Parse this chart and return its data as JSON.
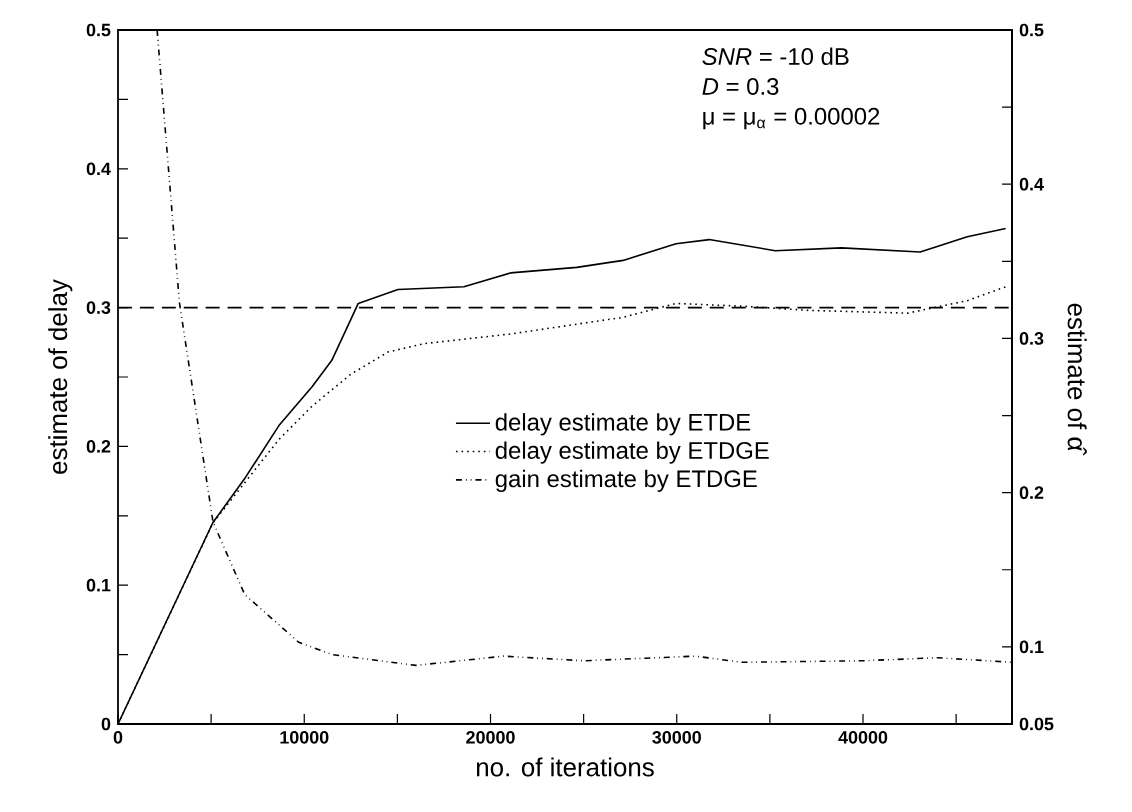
{
  "chart_data": {
    "type": "line",
    "xlabel": "no. of iterations",
    "ylabel": "estimate of delay",
    "y2label": "estimate of α̂",
    "xlim": [
      0,
      48000
    ],
    "ylim": [
      0,
      0.5
    ],
    "y2lim": [
      0.05,
      0.5
    ],
    "xticks": [
      0,
      {
        "value": 5000,
        "label": null
      },
      10000,
      {
        "value": 15000,
        "label": null
      },
      20000,
      {
        "value": 25000,
        "label": null
      },
      30000,
      {
        "value": 35000,
        "label": null
      },
      40000,
      {
        "value": 45000,
        "label": null
      }
    ],
    "yticks": [
      0,
      {
        "value": 0.05,
        "label": null
      },
      0.1,
      {
        "value": 0.15,
        "label": null
      },
      0.2,
      {
        "value": 0.25,
        "label": null
      },
      0.3,
      {
        "value": 0.35,
        "label": null
      },
      0.4,
      {
        "value": 0.45,
        "label": null
      },
      0.5
    ],
    "y2ticks": [
      0.05,
      0.1,
      {
        "value": 0.15,
        "label": null
      },
      0.2,
      {
        "value": 0.25,
        "label": null
      },
      0.3,
      {
        "value": 0.35,
        "label": null
      },
      0.4,
      {
        "value": 0.45,
        "label": null
      },
      0.5
    ],
    "legend": "right",
    "grid": false,
    "marker": "none",
    "series": [
      {
        "name": "delay estimate by ETDE",
        "color": "#000000",
        "line_style": "solid",
        "x": [
          0,
          5090,
          6860,
          8640,
          10420,
          11480,
          12900,
          15030,
          18570,
          21080,
          24630,
          27120,
          29960,
          31740,
          35290,
          38840,
          43070,
          45600,
          47660
        ],
        "values": [
          0,
          0.145,
          0.178,
          0.215,
          0.243,
          0.262,
          0.303,
          0.313,
          0.315,
          0.325,
          0.329,
          0.334,
          0.346,
          0.349,
          0.341,
          0.343,
          0.34,
          0.351,
          0.357
        ]
      },
      {
        "name": "delay estimate by ETDGE",
        "color": "#000000",
        "line_style": "dotted",
        "x": [
          0,
          5100,
          8640,
          10420,
          12500,
          14500,
          16420,
          21080,
          27120,
          29960,
          33510,
          37070,
          42390,
          45600,
          47660
        ],
        "values": [
          0,
          0.145,
          0.205,
          0.229,
          0.252,
          0.268,
          0.274,
          0.281,
          0.293,
          0.303,
          0.301,
          0.298,
          0.296,
          0.305,
          0.315
        ]
      },
      {
        "name": "gain estimate by ETDGE",
        "color": "#000000",
        "line_style": "dashdotdotted",
        "axis": "y2",
        "x": [
          2100,
          3300,
          5100,
          6800,
          9700,
          11500,
          16000,
          20700,
          25000,
          31000,
          33500,
          40000,
          44000,
          48000
        ],
        "values": [
          0.5,
          0.323,
          0.181,
          0.134,
          0.103,
          0.095,
          0.088,
          0.094,
          0.091,
          0.094,
          0.09,
          0.091,
          0.093,
          0.09
        ]
      }
    ],
    "ref_lines": [
      {
        "axis": "y",
        "value": 0.3,
        "color": "#000000",
        "line_style": "dashed"
      }
    ],
    "annotations": [
      "*SNR* = -10 dB",
      "*D* = 0.3",
      "μ = μ$_{α}$ = 0.00002"
    ]
  }
}
